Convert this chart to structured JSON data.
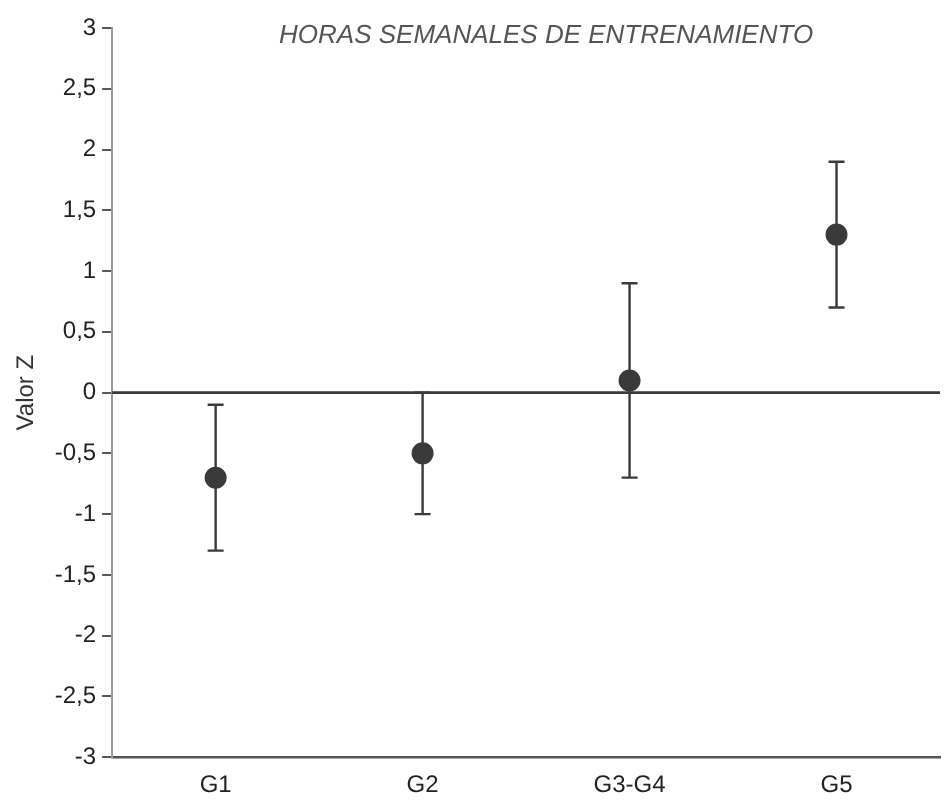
{
  "chart_data": {
    "type": "scatter",
    "title": "HORAS SEMANALES DE ENTRENAMIENTO",
    "ylabel": "Valor Z",
    "categories": [
      "G1",
      "G2",
      "G3-G4",
      "G5"
    ],
    "series": [
      {
        "color": "#3a3a3a",
        "values": [
          -0.7,
          -0.5,
          0.1,
          1.3
        ],
        "errors": [
          0.6,
          0.5,
          0.8,
          0.6
        ]
      }
    ],
    "ylim": [
      -3,
      3
    ],
    "yticks": [
      {
        "value": -3,
        "label": "-3"
      },
      {
        "value": -2.5,
        "label": "-2,5"
      },
      {
        "value": -2,
        "label": "-2"
      },
      {
        "value": -1.5,
        "label": "-1,5"
      },
      {
        "value": -1,
        "label": "-1"
      },
      {
        "value": -0.5,
        "label": "-0,5"
      },
      {
        "value": 0,
        "label": "0"
      },
      {
        "value": 0.5,
        "label": "0,5"
      },
      {
        "value": 1,
        "label": "1"
      },
      {
        "value": 1.5,
        "label": "1,5"
      },
      {
        "value": 2,
        "label": "2"
      },
      {
        "value": 2.5,
        "label": "2,5"
      },
      {
        "value": 3,
        "label": "3"
      }
    ],
    "ref_lines": [
      {
        "axis": "y",
        "value": 0,
        "color": "#3a3a3a"
      }
    ],
    "grid": false,
    "legend": false,
    "marker": "circle"
  }
}
